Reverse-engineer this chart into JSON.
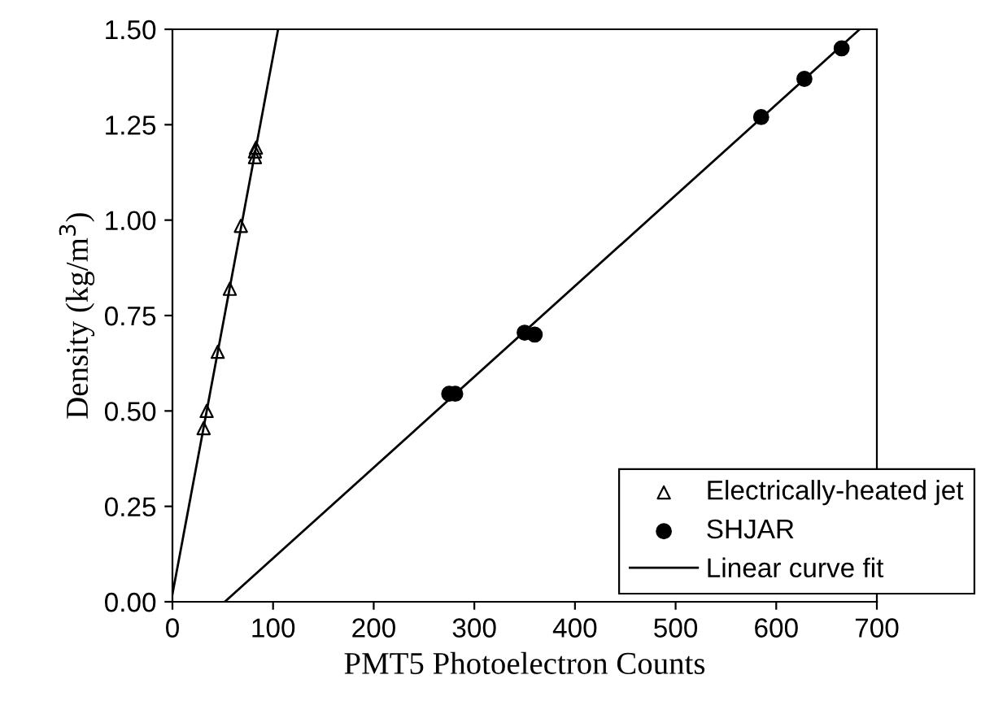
{
  "chart_data": {
    "type": "scatter",
    "xlabel": "PMT5 Photoelectron Counts",
    "ylabel": "Density (kg/m$^{3}$)",
    "xlim": [
      0,
      700
    ],
    "ylim": [
      0,
      1.5
    ],
    "xticks": [
      0,
      100,
      200,
      300,
      400,
      500,
      600,
      700
    ],
    "yticks": [
      {
        "value": 0,
        "label": "0.00"
      },
      {
        "value": 0.25,
        "label": "0.25"
      },
      {
        "value": 0.5,
        "label": "0.50"
      },
      {
        "value": 0.75,
        "label": "0.75"
      },
      {
        "value": 1.0,
        "label": "1.00"
      },
      {
        "value": 1.25,
        "label": "1.25"
      },
      {
        "value": 1.5,
        "label": "1.50"
      }
    ],
    "grid": false,
    "legend": "bottom right",
    "series": [
      {
        "name": "Electrically-heated jet",
        "marker": "triangle",
        "color": "#000000",
        "x": [
          31,
          34,
          45,
          57,
          68,
          82,
          82,
          83
        ],
        "values": [
          0.455,
          0.5,
          0.655,
          0.82,
          0.985,
          1.165,
          1.18,
          1.19
        ]
      },
      {
        "name": "SHJAR",
        "marker": "circle",
        "color": "#000000",
        "x": [
          275,
          281,
          350,
          360,
          585,
          628,
          665
        ],
        "values": [
          0.545,
          0.545,
          0.705,
          0.7,
          1.27,
          1.37,
          1.45
        ]
      },
      {
        "name": "Linear curve fit",
        "type": "line",
        "marker": "none",
        "color": "#000000",
        "x": [
          0,
          105
        ],
        "values": [
          0.02,
          1.5
        ]
      },
      {
        "type": "line",
        "marker": "none",
        "color": "#000000",
        "x": [
          52,
          683
        ],
        "values": [
          0,
          1.5
        ]
      }
    ]
  }
}
